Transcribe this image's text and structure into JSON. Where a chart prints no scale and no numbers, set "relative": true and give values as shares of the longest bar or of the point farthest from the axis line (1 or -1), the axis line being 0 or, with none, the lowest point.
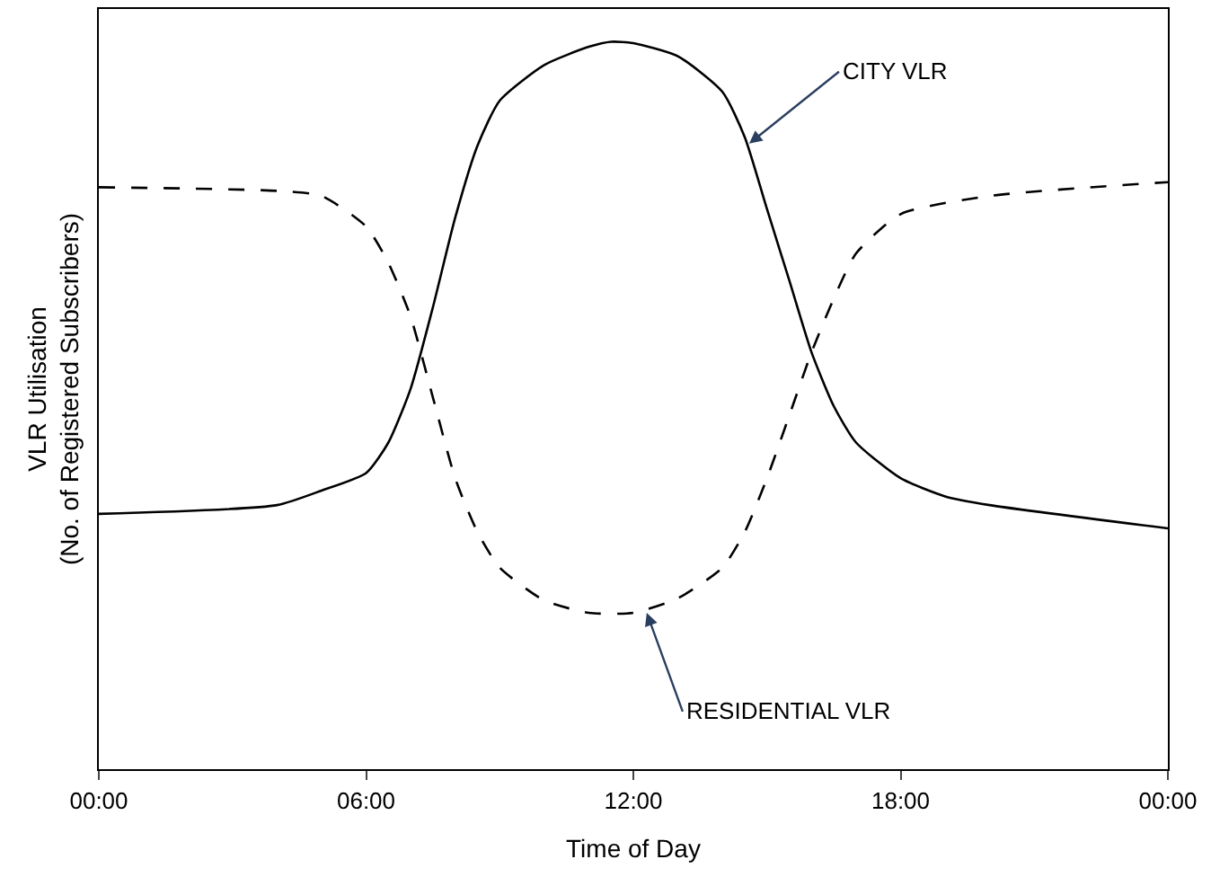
{
  "chart_data": {
    "type": "line",
    "relative": true,
    "xlabel": "Time of Day",
    "ylabel": "VLR Utilisation\n(No. of Registered Subscribers)",
    "xlim": [
      0,
      24
    ],
    "xticks": [
      {
        "value": 0,
        "label": "00:00"
      },
      {
        "value": 6,
        "label": "06:00"
      },
      {
        "value": 12,
        "label": "12:00"
      },
      {
        "value": 18,
        "label": "18:00"
      },
      {
        "value": 24,
        "label": "00:00"
      }
    ],
    "marker": "none",
    "series": [
      {
        "color": "#000000",
        "line_style": "solid",
        "x": [
          0,
          4,
          5,
          6,
          6.5,
          7,
          7.5,
          8,
          8.5,
          9,
          10,
          11,
          11.5,
          12,
          13,
          14,
          14.5,
          15,
          15.5,
          16,
          16.5,
          17,
          18,
          19,
          20,
          24
        ],
        "values": [
          0.351,
          0.363,
          0.383,
          0.407,
          0.449,
          0.523,
          0.635,
          0.758,
          0.857,
          0.919,
          0.968,
          0.993,
          1.0,
          0.998,
          0.98,
          0.931,
          0.869,
          0.77,
          0.672,
          0.573,
          0.499,
          0.449,
          0.4,
          0.375,
          0.363,
          0.331
        ]
      },
      {
        "color": "#000000",
        "line_style": "dashed",
        "x": [
          0,
          4,
          5,
          6,
          6.5,
          7,
          7.5,
          8,
          8.5,
          9,
          10,
          11,
          12,
          13,
          14,
          14.5,
          15,
          15.5,
          16,
          16.5,
          17,
          18,
          20,
          24
        ],
        "values": [
          0.8,
          0.795,
          0.788,
          0.746,
          0.696,
          0.622,
          0.511,
          0.4,
          0.326,
          0.277,
          0.232,
          0.215,
          0.215,
          0.235,
          0.277,
          0.326,
          0.4,
          0.486,
          0.573,
          0.647,
          0.709,
          0.763,
          0.788,
          0.807
        ]
      }
    ],
    "annotations": [
      {
        "text": "CITY VLR",
        "x": 14.6,
        "y": 0.86
      },
      {
        "text": "RESIDENTIAL VLR",
        "x": 12.3,
        "y": 0.215
      }
    ]
  }
}
